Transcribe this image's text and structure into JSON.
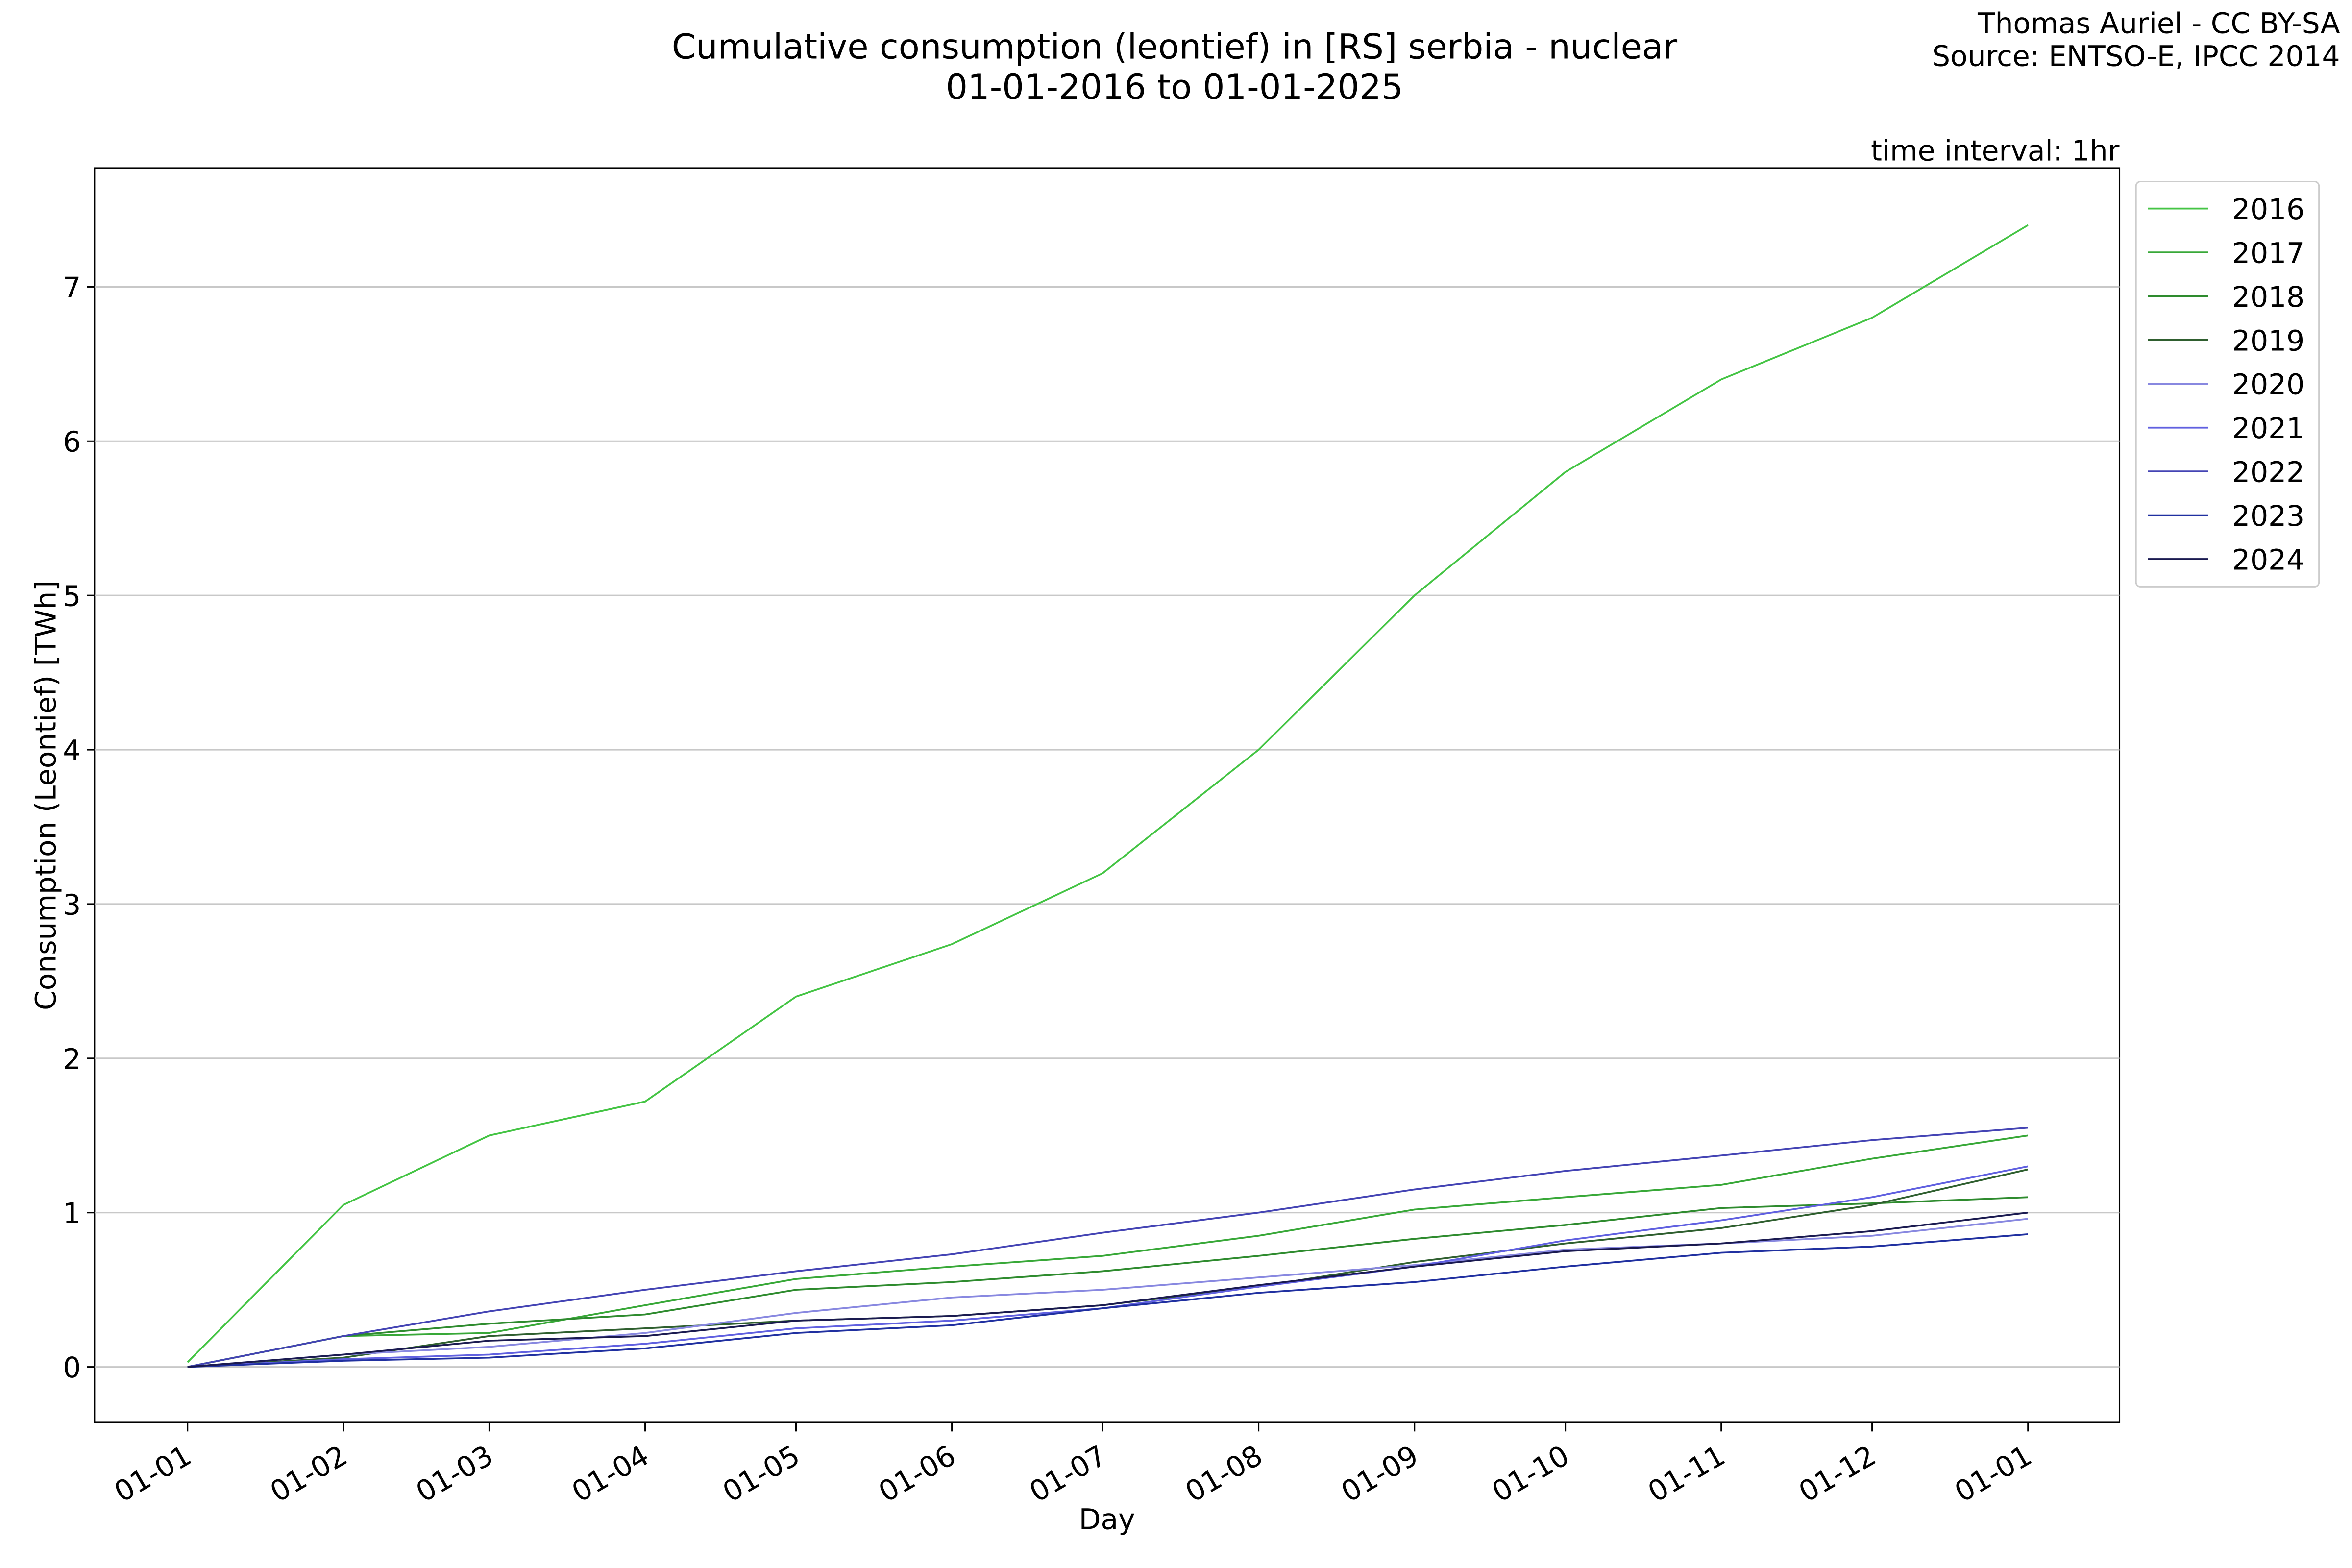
{
  "chart_data": {
    "type": "line",
    "title": "Cumulative consumption (leontief) in [RS] serbia - nuclear",
    "subtitle": "01-01-2016 to 01-01-2025",
    "credit": [
      "Thomas Auriel - CC BY-SA",
      "Source: ENTSO-E, IPCC 2014"
    ],
    "annotation": "time interval: 1hr",
    "x_label": "Day",
    "y_label": "Consumption (Leontief) [TWh]",
    "x": [
      0,
      31,
      60,
      91,
      121,
      152,
      182,
      213,
      244,
      274,
      305,
      335,
      366
    ],
    "xlim": [
      -18.5,
      384.2
    ],
    "xticks": [
      {
        "value": 0,
        "label": "01-01"
      },
      {
        "value": 31,
        "label": "01-02"
      },
      {
        "value": 60,
        "label": "01-03"
      },
      {
        "value": 91,
        "label": "01-04"
      },
      {
        "value": 121,
        "label": "01-05"
      },
      {
        "value": 152,
        "label": "01-06"
      },
      {
        "value": 182,
        "label": "01-07"
      },
      {
        "value": 213,
        "label": "01-08"
      },
      {
        "value": 244,
        "label": "01-09"
      },
      {
        "value": 274,
        "label": "01-10"
      },
      {
        "value": 305,
        "label": "01-11"
      },
      {
        "value": 335,
        "label": "01-12"
      },
      {
        "value": 366,
        "label": "01-01"
      }
    ],
    "ylim": [
      -0.36,
      7.77
    ],
    "yticks": [
      0,
      1,
      2,
      3,
      4,
      5,
      6,
      7
    ],
    "grid": true,
    "legend": "outside-upper-right",
    "series": [
      {
        "name": "2016",
        "color": "#44c444",
        "values": [
          0.03,
          1.05,
          1.5,
          1.72,
          2.4,
          2.74,
          3.2,
          4.0,
          5.0,
          5.8,
          6.4,
          6.8,
          7.4
        ]
      },
      {
        "name": "2017",
        "color": "#38a838",
        "values": [
          0,
          0.2,
          0.22,
          0.4,
          0.57,
          0.65,
          0.72,
          0.85,
          1.02,
          1.1,
          1.18,
          1.35,
          1.5
        ]
      },
      {
        "name": "2018",
        "color": "#2e8b2e",
        "values": [
          0,
          0.2,
          0.28,
          0.34,
          0.5,
          0.55,
          0.62,
          0.72,
          0.83,
          0.92,
          1.03,
          1.06,
          1.1
        ]
      },
      {
        "name": "2019",
        "color": "#2f5f2f",
        "values": [
          0,
          0.06,
          0.2,
          0.25,
          0.3,
          0.33,
          0.4,
          0.52,
          0.68,
          0.8,
          0.9,
          1.05,
          1.28
        ]
      },
      {
        "name": "2020",
        "color": "#8888e0",
        "values": [
          0,
          0.08,
          0.13,
          0.22,
          0.35,
          0.45,
          0.5,
          0.58,
          0.66,
          0.76,
          0.8,
          0.85,
          0.96
        ]
      },
      {
        "name": "2021",
        "color": "#6060e0",
        "values": [
          0,
          0.05,
          0.08,
          0.15,
          0.25,
          0.3,
          0.38,
          0.52,
          0.65,
          0.82,
          0.95,
          1.1,
          1.3
        ]
      },
      {
        "name": "2022",
        "color": "#4444b4",
        "values": [
          0,
          0.2,
          0.36,
          0.5,
          0.62,
          0.73,
          0.87,
          1.0,
          1.15,
          1.27,
          1.37,
          1.47,
          1.55
        ]
      },
      {
        "name": "2023",
        "color": "#2030a0",
        "values": [
          0,
          0.04,
          0.06,
          0.12,
          0.22,
          0.27,
          0.38,
          0.48,
          0.55,
          0.65,
          0.74,
          0.78,
          0.86
        ]
      },
      {
        "name": "2024",
        "color": "#1a1a50",
        "values": [
          0,
          0.08,
          0.17,
          0.2,
          0.3,
          0.33,
          0.4,
          0.53,
          0.65,
          0.75,
          0.8,
          0.88,
          1.0
        ]
      }
    ]
  }
}
